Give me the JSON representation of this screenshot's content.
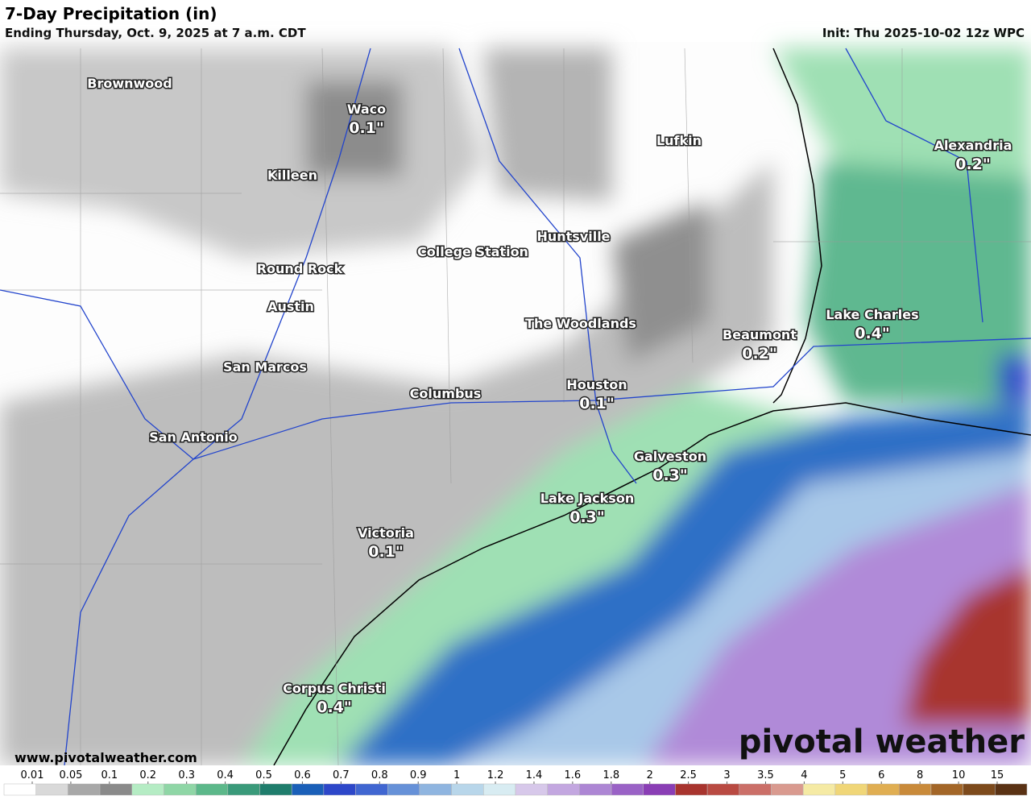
{
  "header": {
    "title": "7-Day Precipitation (in)",
    "subtitle": "Ending Thursday, Oct. 9, 2025 at 7 a.m. CDT",
    "init": "Init: Thu 2025-10-02 12z WPC"
  },
  "cities": [
    {
      "name": "Brownwood"
    },
    {
      "name": "Waco",
      "amount": {
        "value": 0.1,
        "label": "0.1\""
      }
    },
    {
      "name": "Killeen"
    },
    {
      "name": "Lufkin"
    },
    {
      "name": "Alexandria",
      "amount": {
        "value": 0.2,
        "label": "0.2\""
      }
    },
    {
      "name": "Huntsville"
    },
    {
      "name": "College Station"
    },
    {
      "name": "Round Rock"
    },
    {
      "name": "Austin"
    },
    {
      "name": "The Woodlands"
    },
    {
      "name": "Beaumont",
      "amount": {
        "value": 0.2,
        "label": "0.2\""
      }
    },
    {
      "name": "Lake Charles",
      "amount": {
        "value": 0.4,
        "label": "0.4\""
      }
    },
    {
      "name": "San Marcos"
    },
    {
      "name": "Columbus"
    },
    {
      "name": "Houston",
      "amount": {
        "value": 0.1,
        "label": "0.1\""
      }
    },
    {
      "name": "San Antonio"
    },
    {
      "name": "Galveston",
      "amount": {
        "value": 0.3,
        "label": "0.3\""
      }
    },
    {
      "name": "Lake Jackson",
      "amount": {
        "value": 0.3,
        "label": "0.3\""
      }
    },
    {
      "name": "Victoria",
      "amount": {
        "value": 0.1,
        "label": "0.1\""
      }
    },
    {
      "name": "Corpus Christi",
      "amount": {
        "value": 0.4,
        "label": "0.4\""
      }
    }
  ],
  "legend": {
    "ticks": [
      0.01,
      0.05,
      0.1,
      0.2,
      0.3,
      0.4,
      0.5,
      0.6,
      0.7,
      0.8,
      0.9,
      1,
      1.2,
      1.4,
      1.6,
      1.8,
      2,
      2.5,
      3,
      3.5,
      4,
      5,
      6,
      8,
      10,
      15
    ],
    "colors": [
      "#ffffff",
      "#d9d9d9",
      "#a8a8a8",
      "#8a8a8a",
      "#b5ecc4",
      "#8fd6a6",
      "#5cb88a",
      "#3a9a7a",
      "#1f7d6c",
      "#1a5fb8",
      "#2d47c9",
      "#4066d1",
      "#6691d8",
      "#8fb5e0",
      "#b8d6ea",
      "#d8ecf2",
      "#d7c8ea",
      "#c3a7e0",
      "#ad86d4",
      "#9a62c6",
      "#8a3eb5",
      "#a8342e",
      "#b94a42",
      "#cb6f68",
      "#d99a8f",
      "#f5eaa4",
      "#f0d678",
      "#e0ae52",
      "#c98a3a",
      "#a36628",
      "#7d4a1c",
      "#5a3214"
    ]
  },
  "footer": {
    "url": "www.pivotalweather.com",
    "brand": "pivotal weather"
  }
}
